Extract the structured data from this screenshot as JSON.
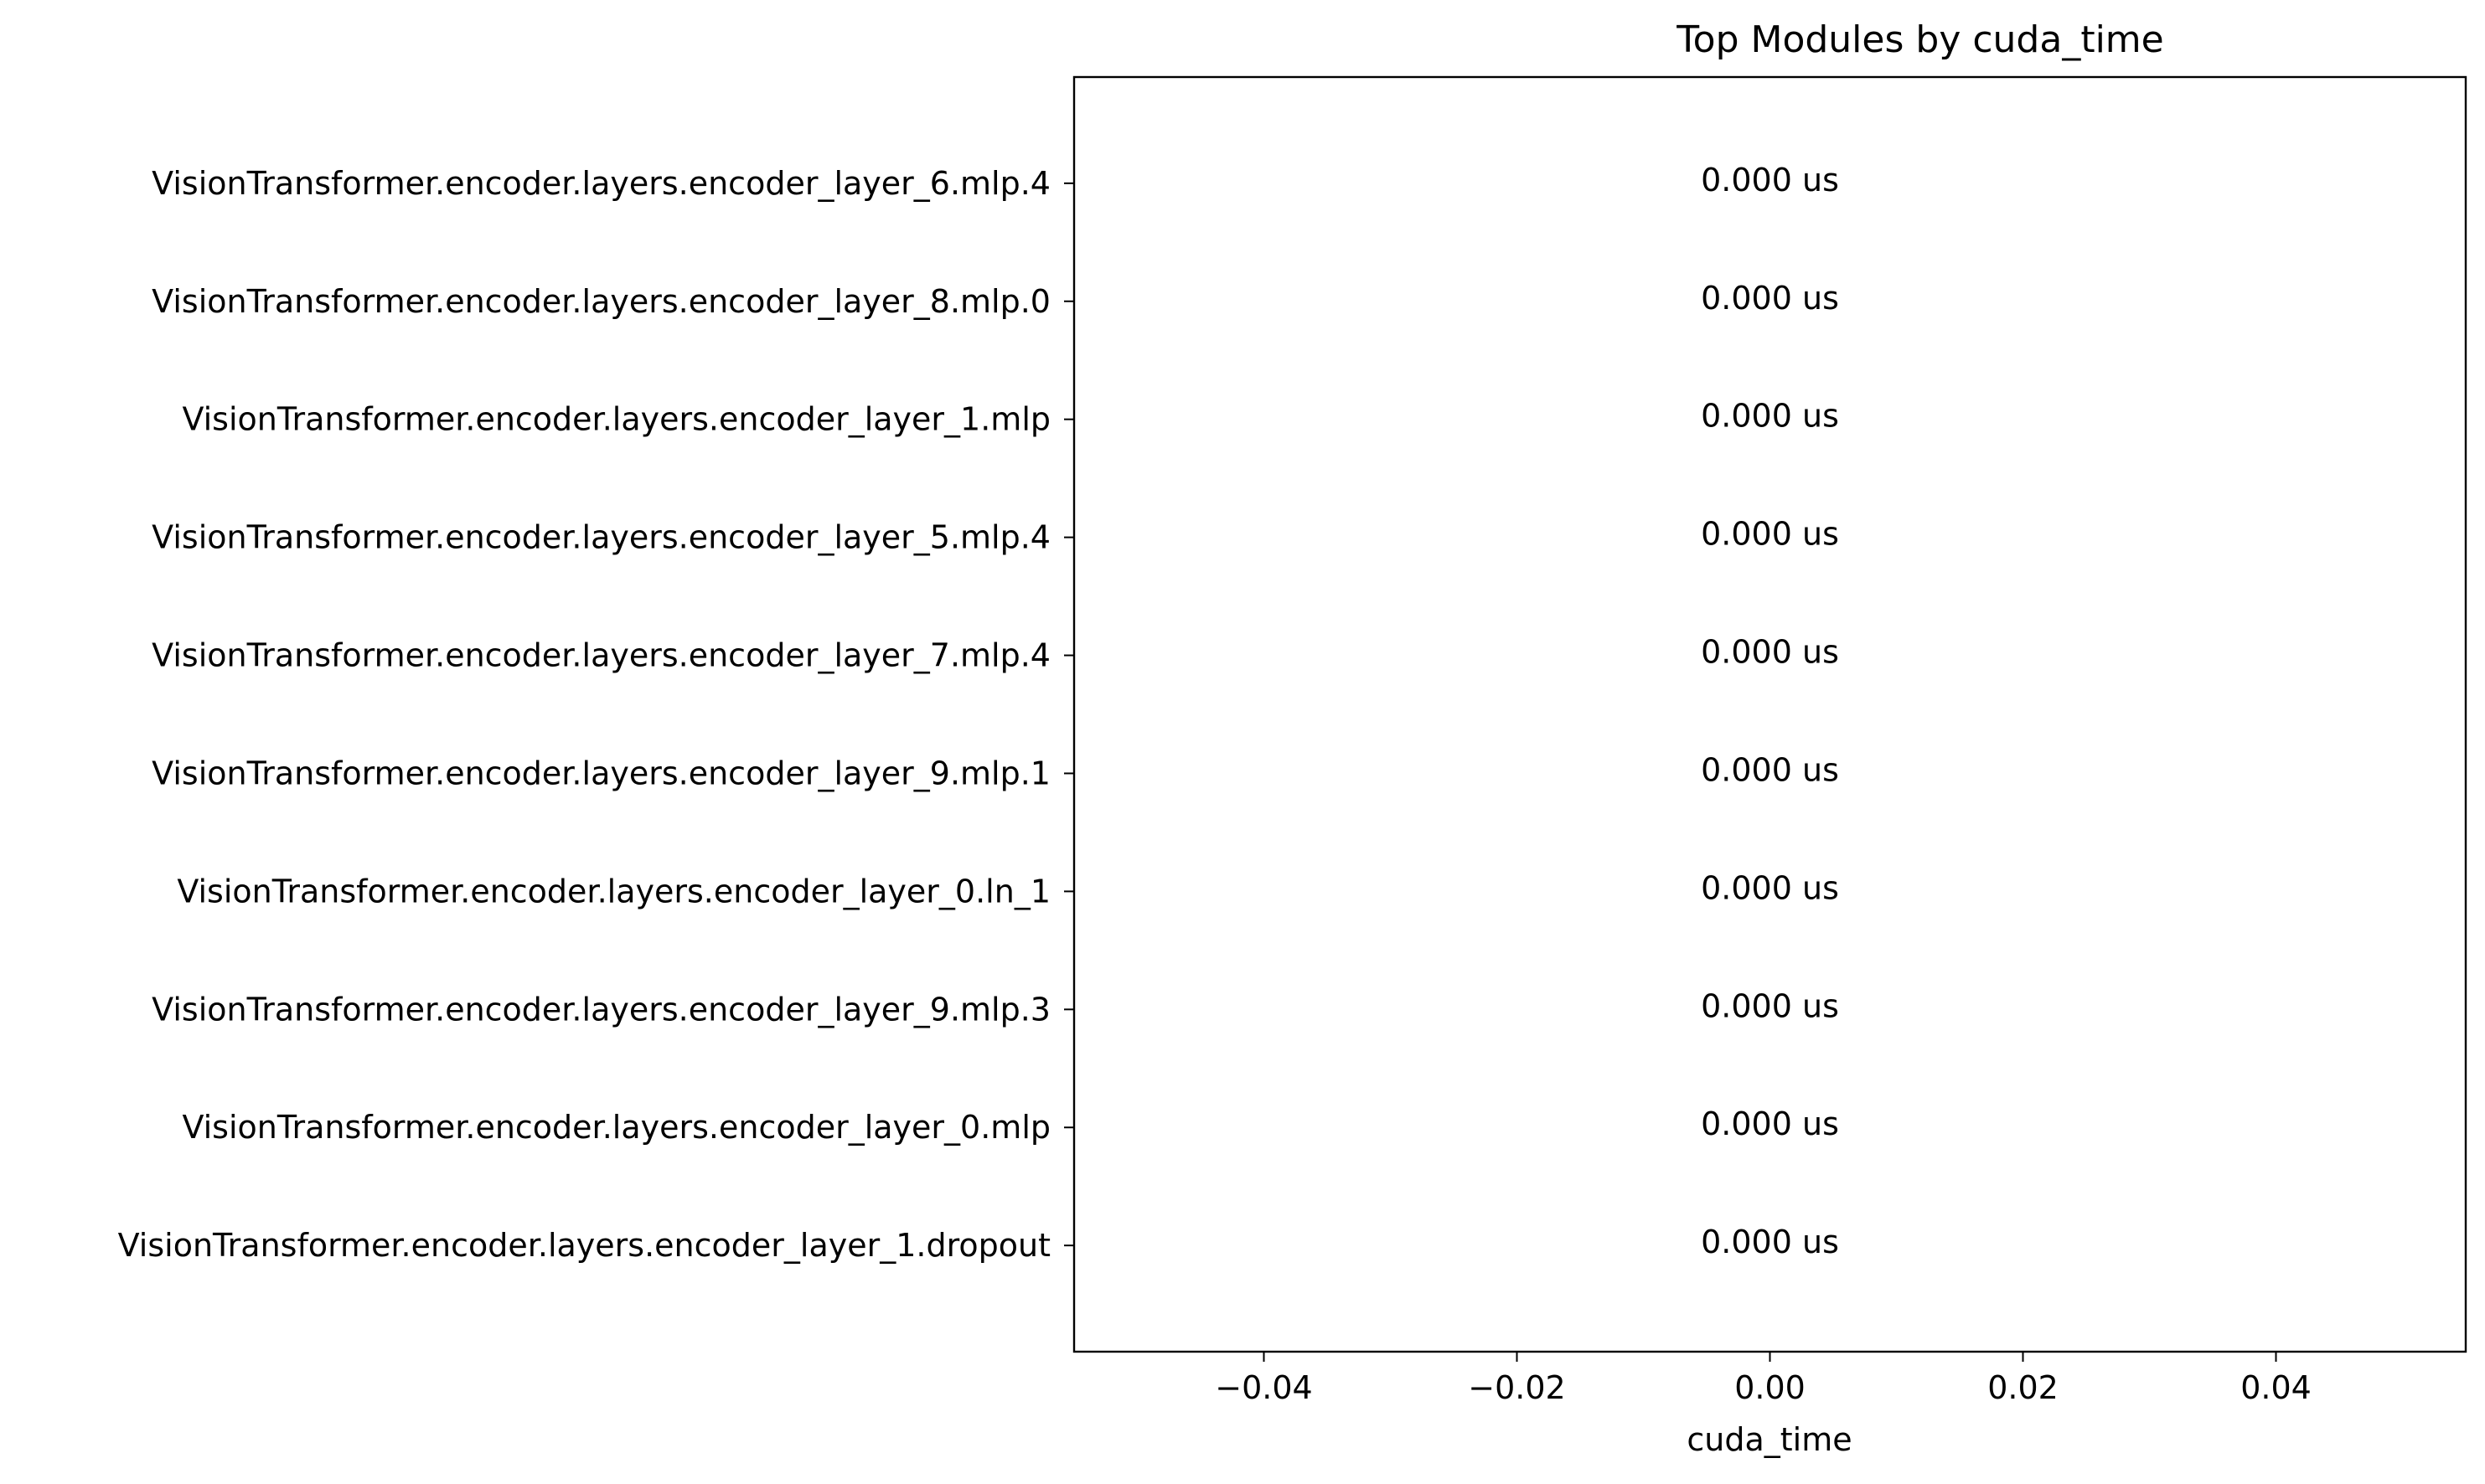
{
  "chart_data": {
    "type": "bar",
    "orientation": "horizontal",
    "title": "Top Modules by cuda_time",
    "xlabel": "cuda_time",
    "ylabel": "",
    "categories": [
      "VisionTransformer.encoder.layers.encoder_layer_6.mlp.4",
      "VisionTransformer.encoder.layers.encoder_layer_8.mlp.0",
      "VisionTransformer.encoder.layers.encoder_layer_1.mlp",
      "VisionTransformer.encoder.layers.encoder_layer_5.mlp.4",
      "VisionTransformer.encoder.layers.encoder_layer_7.mlp.4",
      "VisionTransformer.encoder.layers.encoder_layer_9.mlp.1",
      "VisionTransformer.encoder.layers.encoder_layer_0.ln_1",
      "VisionTransformer.encoder.layers.encoder_layer_9.mlp.3",
      "VisionTransformer.encoder.layers.encoder_layer_0.mlp",
      "VisionTransformer.encoder.layers.encoder_layer_1.dropout"
    ],
    "values": [
      0,
      0,
      0,
      0,
      0,
      0,
      0,
      0,
      0,
      0
    ],
    "data_labels": [
      "0.000 us",
      "0.000 us",
      "0.000 us",
      "0.000 us",
      "0.000 us",
      "0.000 us",
      "0.000 us",
      "0.000 us",
      "0.000 us",
      "0.000 us"
    ],
    "xlim": [
      -0.055,
      0.055
    ],
    "xticks": [
      -0.04,
      -0.02,
      0.0,
      0.02,
      0.04
    ],
    "xtick_labels": [
      "−0.04",
      "−0.02",
      "0.00",
      "0.02",
      "0.04"
    ],
    "grid": false,
    "legend": "none",
    "colors": {
      "axis": "#000000",
      "text": "#000000",
      "background": "#ffffff",
      "bar": "#1f77b4"
    }
  }
}
